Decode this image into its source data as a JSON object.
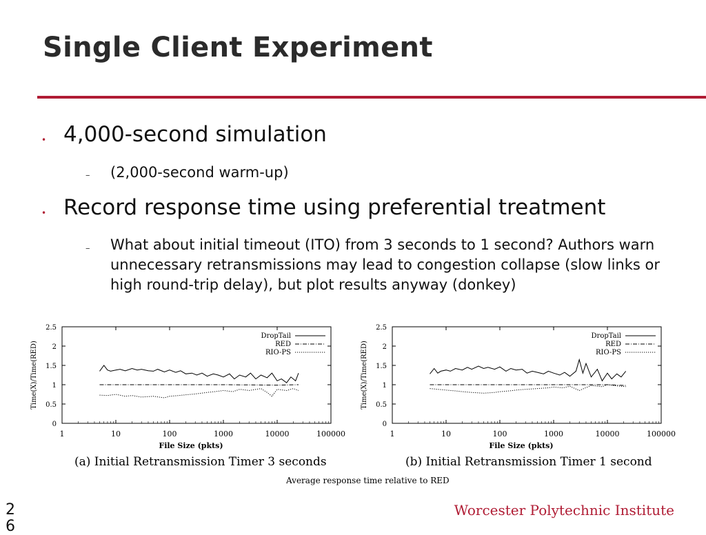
{
  "slide": {
    "title": "Single Client Experiment",
    "bullets": [
      {
        "text": "4,000-second simulation",
        "sub": [
          "(2,000-second warm-up)"
        ]
      },
      {
        "text": "Record response time using preferential treatment",
        "sub": [
          "What about initial timeout (ITO) from 3 seconds to 1 second? Authors warn unnecessary retransmissions may lead to congestion collapse (slow links or high round-trip delay), but plot results anyway (donkey)"
        ]
      }
    ],
    "figure_caption": "Average response time relative to RED",
    "footer": "Worcester Polytechnic Institute",
    "page_number": "26"
  },
  "colors": {
    "accent": "#b01c34",
    "text": "#222222"
  },
  "chart_data": [
    {
      "type": "line",
      "caption": "(a) Initial Retransmission Timer 3 seconds",
      "xlabel": "File Size (pkts)",
      "ylabel": "Time(X)/Time(RED)",
      "xscale": "log",
      "xlim": [
        1,
        100000
      ],
      "ylim": [
        0,
        2.5
      ],
      "xticks": [
        "1",
        "10",
        "100",
        "1000",
        "10000",
        "100000"
      ],
      "yticks": [
        "0",
        "0.5",
        "1",
        "1.5",
        "2",
        "2.5"
      ],
      "legend": "top-right",
      "series": [
        {
          "name": "DropTail",
          "style": "solid",
          "x": [
            5,
            6,
            7,
            8,
            10,
            12,
            15,
            20,
            25,
            30,
            40,
            50,
            60,
            80,
            100,
            130,
            160,
            200,
            260,
            320,
            400,
            500,
            650,
            800,
            1000,
            1300,
            1600,
            2000,
            2600,
            3200,
            4000,
            5000,
            6500,
            8000,
            10000,
            12000,
            15000,
            18000,
            22000,
            25000
          ],
          "y": [
            1.35,
            1.5,
            1.38,
            1.35,
            1.38,
            1.4,
            1.36,
            1.42,
            1.38,
            1.4,
            1.36,
            1.35,
            1.4,
            1.33,
            1.38,
            1.32,
            1.36,
            1.28,
            1.3,
            1.25,
            1.3,
            1.22,
            1.28,
            1.25,
            1.2,
            1.28,
            1.15,
            1.25,
            1.2,
            1.3,
            1.15,
            1.25,
            1.18,
            1.3,
            1.1,
            1.15,
            1.05,
            1.2,
            1.1,
            1.3
          ]
        },
        {
          "name": "RED",
          "style": "dash-dot",
          "x": [
            5,
            10,
            100,
            1000,
            10000,
            25000
          ],
          "y": [
            1.0,
            1.0,
            1.0,
            1.0,
            0.99,
            1.0
          ]
        },
        {
          "name": "RIO-PS",
          "style": "dotted",
          "x": [
            5,
            7,
            10,
            15,
            20,
            30,
            50,
            80,
            100,
            150,
            200,
            300,
            500,
            800,
            1000,
            1500,
            2000,
            3000,
            5000,
            6500,
            8000,
            10000,
            15000,
            20000,
            25000
          ],
          "y": [
            0.73,
            0.72,
            0.75,
            0.7,
            0.72,
            0.68,
            0.7,
            0.66,
            0.7,
            0.72,
            0.74,
            0.76,
            0.8,
            0.83,
            0.85,
            0.82,
            0.88,
            0.85,
            0.9,
            0.8,
            0.7,
            0.88,
            0.85,
            0.9,
            0.85
          ]
        }
      ]
    },
    {
      "type": "line",
      "caption": "(b) Initial Retransmission Timer 1 second",
      "xlabel": "File Size (pkts)",
      "ylabel": "Time(X)/Time(RED)",
      "xscale": "log",
      "xlim": [
        1,
        100000
      ],
      "ylim": [
        0,
        2.5
      ],
      "xticks": [
        "1",
        "10",
        "100",
        "1000",
        "10000",
        "100000"
      ],
      "yticks": [
        "0",
        "0.5",
        "1",
        "1.5",
        "2",
        "2.5"
      ],
      "legend": "top-right",
      "series": [
        {
          "name": "DropTail",
          "style": "solid",
          "x": [
            5,
            6,
            7,
            8,
            10,
            12,
            15,
            20,
            25,
            30,
            40,
            50,
            60,
            80,
            100,
            130,
            160,
            200,
            260,
            320,
            400,
            500,
            650,
            800,
            1000,
            1300,
            1600,
            2000,
            2600,
            3000,
            3500,
            4000,
            5000,
            6500,
            8000,
            10000,
            12000,
            15000,
            18000,
            22000
          ],
          "y": [
            1.28,
            1.42,
            1.3,
            1.35,
            1.38,
            1.35,
            1.42,
            1.38,
            1.45,
            1.4,
            1.48,
            1.42,
            1.45,
            1.4,
            1.46,
            1.35,
            1.42,
            1.38,
            1.4,
            1.3,
            1.35,
            1.32,
            1.28,
            1.35,
            1.3,
            1.25,
            1.32,
            1.22,
            1.35,
            1.65,
            1.3,
            1.55,
            1.2,
            1.4,
            1.1,
            1.3,
            1.15,
            1.28,
            1.2,
            1.35
          ]
        },
        {
          "name": "RED",
          "style": "dash-dot",
          "x": [
            5,
            10,
            100,
            1000,
            10000,
            22000
          ],
          "y": [
            1.0,
            1.0,
            1.0,
            1.0,
            1.0,
            0.98
          ]
        },
        {
          "name": "RIO-PS",
          "style": "dotted",
          "x": [
            5,
            7,
            10,
            15,
            20,
            30,
            50,
            80,
            100,
            150,
            200,
            300,
            500,
            800,
            1000,
            1500,
            2000,
            3000,
            5000,
            8000,
            10000,
            15000,
            22000
          ],
          "y": [
            0.9,
            0.88,
            0.86,
            0.84,
            0.82,
            0.8,
            0.78,
            0.8,
            0.82,
            0.84,
            0.86,
            0.88,
            0.9,
            0.92,
            0.94,
            0.92,
            0.96,
            0.85,
            0.98,
            0.95,
            1.0,
            0.97,
            0.95
          ]
        }
      ]
    }
  ]
}
